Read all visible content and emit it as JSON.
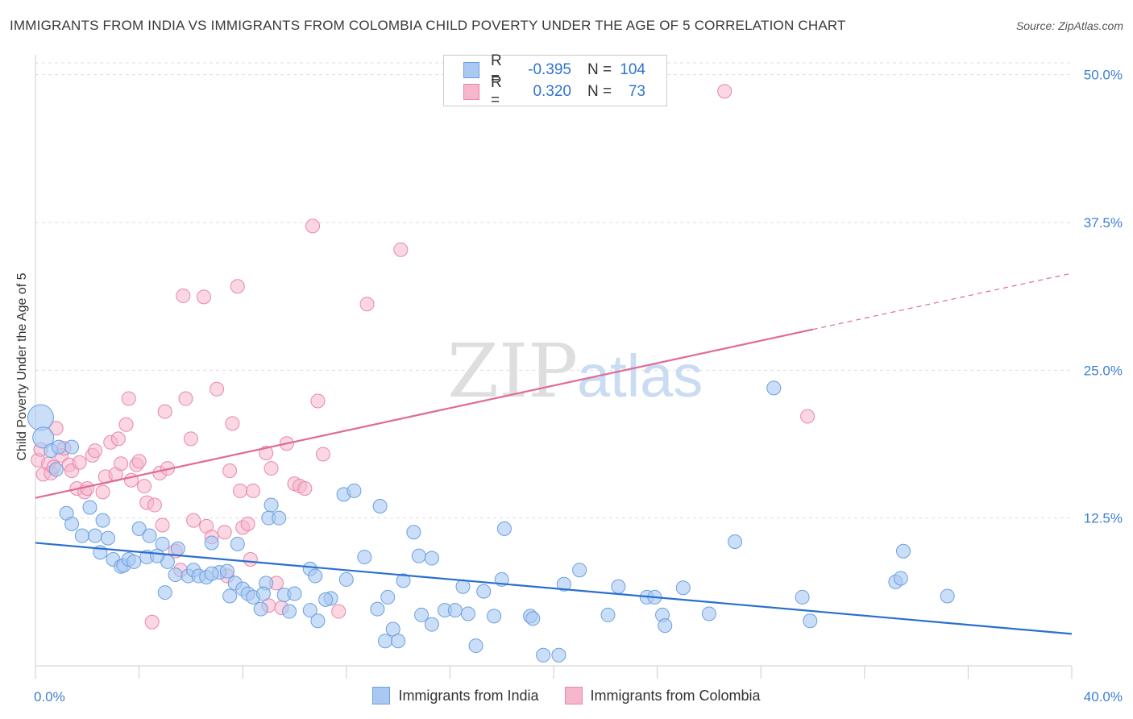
{
  "header": {
    "title": "IMMIGRANTS FROM INDIA VS IMMIGRANTS FROM COLOMBIA CHILD POVERTY UNDER THE AGE OF 5 CORRELATION CHART",
    "source": "Source: ZipAtlas.com"
  },
  "watermark": {
    "zip": "ZIP",
    "atlas": "atlas"
  },
  "legend": {
    "india": {
      "r_label": "R =",
      "r_value": "-0.395",
      "n_label": "N =",
      "n_value": "104"
    },
    "colombia": {
      "r_label": "R =",
      "r_value": "0.320",
      "n_label": "N =",
      "n_value": "73"
    }
  },
  "colors": {
    "india_fill": "#a9c8f2",
    "india_stroke": "#6a9fe0",
    "india_line": "#2a6fcf",
    "colombia_fill": "#f6b6cc",
    "colombia_stroke": "#e887a8",
    "colombia_line": "#e06a96",
    "axis_text": "#3d7fd0",
    "grid": "#dddddd"
  },
  "chart_data": {
    "type": "scatter",
    "title": "IMMIGRANTS FROM INDIA VS IMMIGRANTS FROM COLOMBIA CHILD POVERTY UNDER THE AGE OF 5 CORRELATION CHART",
    "xlabel": "",
    "ylabel": "Child Poverty Under the Age of 5",
    "xlim": [
      0,
      40
    ],
    "ylim": [
      0,
      51
    ],
    "x_tick_labels": [
      "0.0%",
      "40.0%"
    ],
    "y_ticks": [
      12.5,
      25.0,
      37.5,
      50.0
    ],
    "y_tick_labels": [
      "12.5%",
      "25.0%",
      "37.5%",
      "50.0%"
    ],
    "grid": true,
    "legend_position": "top-center",
    "series": [
      {
        "name": "Immigrants from India",
        "trend": {
          "x": [
            0,
            40
          ],
          "y": [
            10.4,
            2.7
          ]
        },
        "points": [
          [
            0.2,
            21.0
          ],
          [
            0.3,
            19.3
          ],
          [
            1.4,
            18.5
          ],
          [
            0.8,
            16.6
          ],
          [
            0.6,
            18.2
          ],
          [
            1.2,
            12.9
          ],
          [
            2.1,
            13.4
          ],
          [
            2.6,
            12.3
          ],
          [
            1.4,
            12.0
          ],
          [
            1.8,
            11.0
          ],
          [
            2.3,
            11.0
          ],
          [
            2.8,
            10.8
          ],
          [
            2.5,
            9.6
          ],
          [
            3.0,
            9.0
          ],
          [
            3.3,
            8.4
          ],
          [
            3.4,
            8.5
          ],
          [
            3.6,
            9.0
          ],
          [
            3.8,
            8.8
          ],
          [
            4.0,
            11.6
          ],
          [
            4.4,
            11.0
          ],
          [
            4.3,
            9.2
          ],
          [
            4.9,
            10.3
          ],
          [
            5.1,
            8.8
          ],
          [
            5.5,
            9.9
          ],
          [
            5.0,
            6.2
          ],
          [
            5.4,
            7.7
          ],
          [
            5.9,
            7.6
          ],
          [
            6.1,
            8.1
          ],
          [
            6.3,
            7.6
          ],
          [
            6.6,
            7.5
          ],
          [
            6.8,
            10.4
          ],
          [
            7.1,
            7.9
          ],
          [
            7.4,
            8.0
          ],
          [
            7.5,
            5.9
          ],
          [
            7.7,
            7.0
          ],
          [
            7.8,
            10.3
          ],
          [
            8.0,
            6.5
          ],
          [
            8.2,
            6.1
          ],
          [
            8.4,
            5.8
          ],
          [
            8.9,
            7.0
          ],
          [
            8.8,
            6.1
          ],
          [
            8.7,
            4.8
          ],
          [
            9.1,
            13.6
          ],
          [
            9.0,
            12.5
          ],
          [
            9.4,
            12.5
          ],
          [
            9.6,
            6.0
          ],
          [
            10.0,
            6.1
          ],
          [
            10.6,
            8.2
          ],
          [
            10.8,
            7.6
          ],
          [
            10.6,
            4.7
          ],
          [
            10.9,
            3.8
          ],
          [
            11.4,
            5.7
          ],
          [
            11.9,
            14.5
          ],
          [
            12.3,
            14.8
          ],
          [
            12.0,
            7.3
          ],
          [
            12.7,
            9.2
          ],
          [
            13.3,
            13.5
          ],
          [
            13.6,
            5.8
          ],
          [
            13.2,
            4.8
          ],
          [
            13.8,
            3.1
          ],
          [
            13.5,
            2.1
          ],
          [
            14.0,
            2.1
          ],
          [
            14.2,
            7.2
          ],
          [
            14.6,
            11.3
          ],
          [
            14.8,
            9.3
          ],
          [
            15.3,
            9.1
          ],
          [
            14.9,
            4.3
          ],
          [
            15.3,
            3.5
          ],
          [
            15.8,
            4.7
          ],
          [
            16.2,
            4.7
          ],
          [
            16.5,
            6.7
          ],
          [
            16.7,
            4.4
          ],
          [
            17.0,
            1.7
          ],
          [
            17.3,
            6.3
          ],
          [
            17.7,
            4.2
          ],
          [
            18.0,
            7.3
          ],
          [
            18.1,
            11.6
          ],
          [
            19.1,
            4.2
          ],
          [
            19.2,
            4.0
          ],
          [
            19.6,
            0.9
          ],
          [
            20.2,
            0.9
          ],
          [
            20.4,
            6.9
          ],
          [
            21.0,
            8.1
          ],
          [
            22.1,
            4.3
          ],
          [
            22.5,
            6.7
          ],
          [
            23.6,
            5.8
          ],
          [
            23.9,
            5.8
          ],
          [
            24.2,
            4.3
          ],
          [
            24.3,
            3.4
          ],
          [
            25.0,
            6.6
          ],
          [
            26.0,
            4.4
          ],
          [
            27.0,
            10.5
          ],
          [
            28.5,
            23.5
          ],
          [
            29.6,
            5.8
          ],
          [
            29.9,
            3.8
          ],
          [
            33.2,
            7.1
          ],
          [
            33.4,
            7.4
          ],
          [
            33.5,
            9.7
          ],
          [
            35.2,
            5.9
          ],
          [
            0.9,
            18.5
          ],
          [
            4.7,
            9.3
          ],
          [
            6.8,
            7.8
          ],
          [
            9.8,
            4.6
          ],
          [
            11.2,
            5.6
          ]
        ]
      },
      {
        "name": "Immigrants from Colombia",
        "trend": {
          "x": [
            0,
            40
          ],
          "y": [
            14.2,
            33.2
          ],
          "solid_until_x": 30
        },
        "points": [
          [
            0.1,
            17.4
          ],
          [
            0.2,
            18.3
          ],
          [
            0.3,
            16.2
          ],
          [
            0.5,
            17.1
          ],
          [
            0.6,
            16.3
          ],
          [
            0.8,
            20.1
          ],
          [
            1.0,
            17.8
          ],
          [
            1.1,
            18.4
          ],
          [
            1.3,
            17.0
          ],
          [
            1.4,
            16.5
          ],
          [
            1.6,
            15.0
          ],
          [
            1.7,
            17.2
          ],
          [
            1.9,
            14.7
          ],
          [
            2.0,
            15.0
          ],
          [
            2.2,
            17.8
          ],
          [
            2.3,
            18.2
          ],
          [
            2.6,
            14.7
          ],
          [
            2.7,
            16.0
          ],
          [
            2.9,
            18.9
          ],
          [
            3.1,
            16.2
          ],
          [
            3.2,
            19.2
          ],
          [
            3.3,
            17.1
          ],
          [
            3.5,
            20.4
          ],
          [
            3.6,
            22.6
          ],
          [
            3.7,
            15.7
          ],
          [
            3.9,
            17.0
          ],
          [
            4.0,
            17.3
          ],
          [
            4.2,
            15.2
          ],
          [
            4.3,
            13.8
          ],
          [
            4.5,
            3.7
          ],
          [
            4.6,
            13.6
          ],
          [
            4.8,
            16.3
          ],
          [
            4.9,
            11.9
          ],
          [
            5.0,
            21.5
          ],
          [
            5.1,
            16.7
          ],
          [
            5.4,
            9.7
          ],
          [
            5.6,
            8.1
          ],
          [
            5.8,
            22.6
          ],
          [
            6.0,
            19.2
          ],
          [
            6.1,
            12.3
          ],
          [
            5.7,
            31.3
          ],
          [
            6.5,
            31.2
          ],
          [
            6.6,
            11.8
          ],
          [
            6.8,
            10.9
          ],
          [
            7.0,
            23.4
          ],
          [
            7.3,
            11.3
          ],
          [
            7.4,
            7.6
          ],
          [
            7.5,
            16.5
          ],
          [
            7.6,
            20.5
          ],
          [
            7.8,
            32.1
          ],
          [
            7.9,
            14.8
          ],
          [
            8.0,
            11.7
          ],
          [
            8.2,
            12.0
          ],
          [
            8.3,
            9.0
          ],
          [
            8.4,
            14.8
          ],
          [
            8.9,
            18.0
          ],
          [
            9.0,
            5.1
          ],
          [
            9.1,
            16.7
          ],
          [
            9.3,
            7.0
          ],
          [
            9.5,
            4.9
          ],
          [
            9.7,
            18.8
          ],
          [
            10.0,
            15.4
          ],
          [
            10.2,
            15.2
          ],
          [
            10.4,
            15.0
          ],
          [
            10.7,
            37.2
          ],
          [
            10.9,
            22.4
          ],
          [
            11.1,
            17.9
          ],
          [
            11.7,
            4.6
          ],
          [
            12.8,
            30.6
          ],
          [
            14.1,
            35.2
          ],
          [
            26.6,
            48.6
          ],
          [
            29.8,
            21.1
          ],
          [
            0.7,
            16.8
          ]
        ]
      }
    ]
  }
}
